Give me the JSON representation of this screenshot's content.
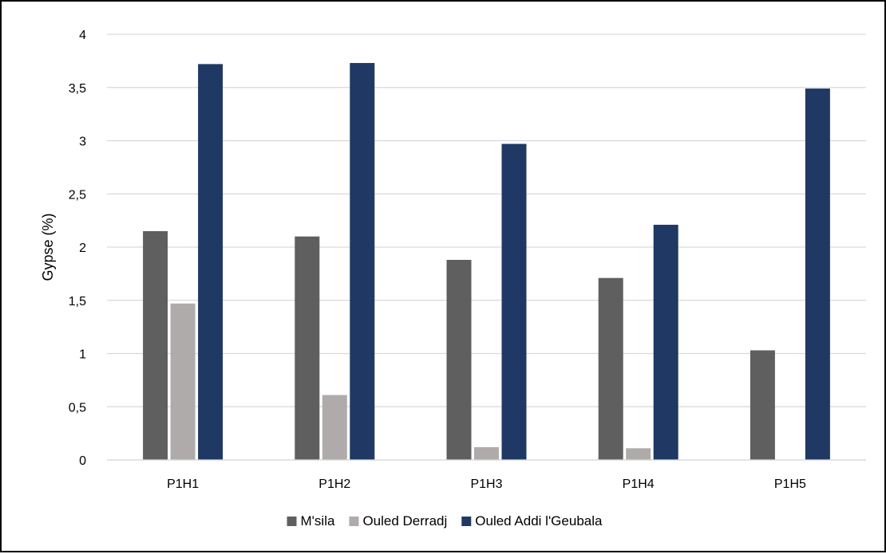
{
  "chart_data": {
    "type": "bar",
    "title": "",
    "xlabel": "",
    "ylabel": "Gypse (%)",
    "categories": [
      "P1H1",
      "P1H2",
      "P1H3",
      "P1H4",
      "P1H5"
    ],
    "series": [
      {
        "name": "M'sila",
        "color": "#5f5f5f",
        "values": [
          2.15,
          2.1,
          1.88,
          1.71,
          1.03
        ]
      },
      {
        "name": "Ouled Derradj",
        "color": "#afabab",
        "values": [
          1.47,
          0.61,
          0.12,
          0.11,
          0
        ]
      },
      {
        "name": "Ouled Addi l'Geubala",
        "color": "#203864",
        "values": [
          3.72,
          3.73,
          2.97,
          2.21,
          3.49
        ]
      }
    ],
    "ylim": [
      0,
      4
    ],
    "yticks": [
      "0",
      "0,5",
      "1",
      "1,5",
      "2",
      "2,5",
      "3",
      "3,5",
      "4"
    ],
    "grid": true,
    "legend": "bottom"
  }
}
